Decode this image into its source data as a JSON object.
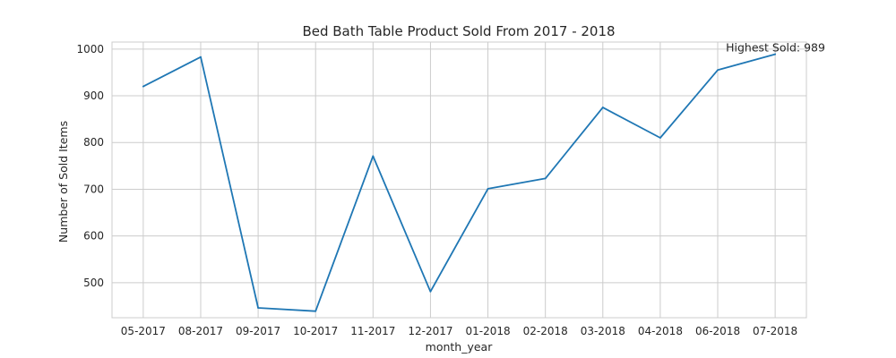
{
  "chart_data": {
    "type": "line",
    "title": "Bed Bath Table Product Sold From 2017 - 2018",
    "xlabel": "month_year",
    "ylabel": "Number of Sold Items",
    "categories": [
      "05-2017",
      "08-2017",
      "09-2017",
      "10-2017",
      "11-2017",
      "12-2017",
      "01-2018",
      "02-2018",
      "03-2018",
      "04-2018",
      "06-2018",
      "07-2018"
    ],
    "series": [
      {
        "values": [
          920,
          983,
          446,
          439,
          771,
          481,
          701,
          723,
          875,
          810,
          955,
          989
        ],
        "color": "#1f77b4"
      }
    ],
    "yticks": [
      500,
      600,
      700,
      800,
      900,
      1000
    ],
    "ylim": [
      425,
      1015
    ],
    "grid": true,
    "annotation": {
      "text": "Highest Sold: 989",
      "category": "07-2018",
      "value": 989
    }
  }
}
